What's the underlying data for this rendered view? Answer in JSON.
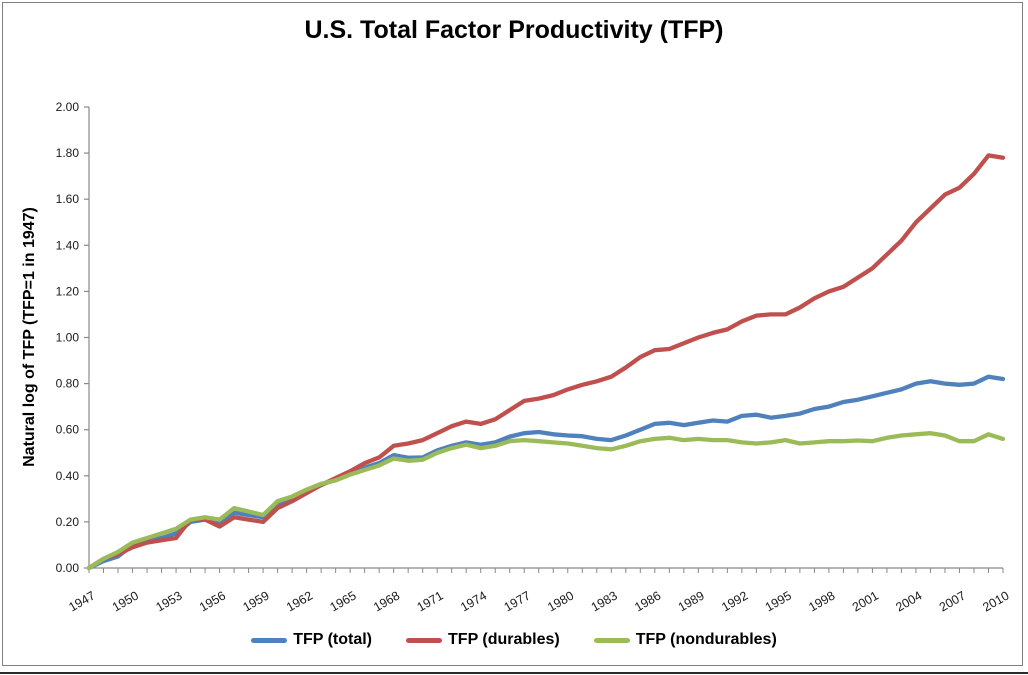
{
  "window": {
    "frame_border_color": "#808080",
    "bottom_edge_color": "#2b2b2b",
    "background_color": "#ffffff"
  },
  "chart_data": {
    "type": "line",
    "title": "U.S. Total Factor Productivity (TFP)",
    "xlabel": "",
    "ylabel": "Natural log of TFP (TFP=1 in 1947)",
    "ylim": [
      0.0,
      2.0
    ],
    "ytick_step": 0.2,
    "ytick_labels": [
      "0.00",
      "0.20",
      "0.40",
      "0.60",
      "0.80",
      "1.00",
      "1.20",
      "1.40",
      "1.60",
      "1.80",
      "2.00"
    ],
    "grid": false,
    "legend_position": "bottom",
    "axis_color": "#898989",
    "tick_label_color": "#1a1a1a",
    "x_labeled_years": [
      1947,
      1950,
      1953,
      1956,
      1959,
      1962,
      1965,
      1968,
      1971,
      1974,
      1977,
      1980,
      1983,
      1986,
      1989,
      1992,
      1995,
      1998,
      2001,
      2004,
      2007,
      2010
    ],
    "x": [
      1947,
      1948,
      1949,
      1950,
      1951,
      1952,
      1953,
      1954,
      1955,
      1956,
      1957,
      1958,
      1959,
      1960,
      1961,
      1962,
      1963,
      1964,
      1965,
      1966,
      1967,
      1968,
      1969,
      1970,
      1971,
      1972,
      1973,
      1974,
      1975,
      1976,
      1977,
      1978,
      1979,
      1980,
      1981,
      1982,
      1983,
      1984,
      1985,
      1986,
      1987,
      1988,
      1989,
      1990,
      1991,
      1992,
      1993,
      1994,
      1995,
      1996,
      1997,
      1998,
      1999,
      2000,
      2001,
      2002,
      2003,
      2004,
      2005,
      2006,
      2007,
      2008,
      2009,
      2010
    ],
    "series": [
      {
        "name": "TFP (total)",
        "color": "#4F81BD",
        "values": [
          0.0,
          0.03,
          0.05,
          0.1,
          0.12,
          0.13,
          0.15,
          0.2,
          0.21,
          0.2,
          0.24,
          0.23,
          0.22,
          0.27,
          0.3,
          0.33,
          0.36,
          0.385,
          0.41,
          0.435,
          0.455,
          0.49,
          0.478,
          0.48,
          0.51,
          0.53,
          0.545,
          0.535,
          0.545,
          0.57,
          0.585,
          0.59,
          0.58,
          0.575,
          0.572,
          0.56,
          0.555,
          0.575,
          0.6,
          0.625,
          0.63,
          0.62,
          0.63,
          0.64,
          0.635,
          0.66,
          0.665,
          0.652,
          0.66,
          0.67,
          0.69,
          0.7,
          0.72,
          0.73,
          0.745,
          0.76,
          0.775,
          0.8,
          0.81,
          0.8,
          0.795,
          0.8,
          0.83,
          0.82
        ]
      },
      {
        "name": "TFP (durables)",
        "color": "#C0504D",
        "values": [
          0.0,
          0.04,
          0.06,
          0.09,
          0.11,
          0.12,
          0.13,
          0.21,
          0.21,
          0.18,
          0.22,
          0.21,
          0.2,
          0.26,
          0.29,
          0.325,
          0.36,
          0.39,
          0.42,
          0.455,
          0.48,
          0.53,
          0.54,
          0.555,
          0.585,
          0.615,
          0.635,
          0.625,
          0.645,
          0.685,
          0.725,
          0.735,
          0.75,
          0.775,
          0.795,
          0.81,
          0.83,
          0.87,
          0.915,
          0.945,
          0.95,
          0.975,
          1.0,
          1.02,
          1.035,
          1.07,
          1.095,
          1.1,
          1.1,
          1.13,
          1.17,
          1.2,
          1.22,
          1.26,
          1.3,
          1.36,
          1.42,
          1.5,
          1.56,
          1.62,
          1.65,
          1.71,
          1.79,
          1.78
        ]
      },
      {
        "name": "TFP (nondurables)",
        "color": "#9BBB59",
        "values": [
          0.0,
          0.04,
          0.07,
          0.11,
          0.13,
          0.15,
          0.17,
          0.21,
          0.22,
          0.21,
          0.26,
          0.245,
          0.23,
          0.29,
          0.31,
          0.34,
          0.365,
          0.38,
          0.405,
          0.425,
          0.445,
          0.475,
          0.465,
          0.47,
          0.5,
          0.52,
          0.535,
          0.52,
          0.53,
          0.55,
          0.555,
          0.55,
          0.545,
          0.54,
          0.53,
          0.52,
          0.515,
          0.53,
          0.55,
          0.56,
          0.565,
          0.555,
          0.56,
          0.555,
          0.555,
          0.545,
          0.54,
          0.545,
          0.555,
          0.54,
          0.545,
          0.55,
          0.55,
          0.553,
          0.55,
          0.565,
          0.575,
          0.58,
          0.585,
          0.575,
          0.55,
          0.55,
          0.58,
          0.56
        ]
      }
    ]
  }
}
